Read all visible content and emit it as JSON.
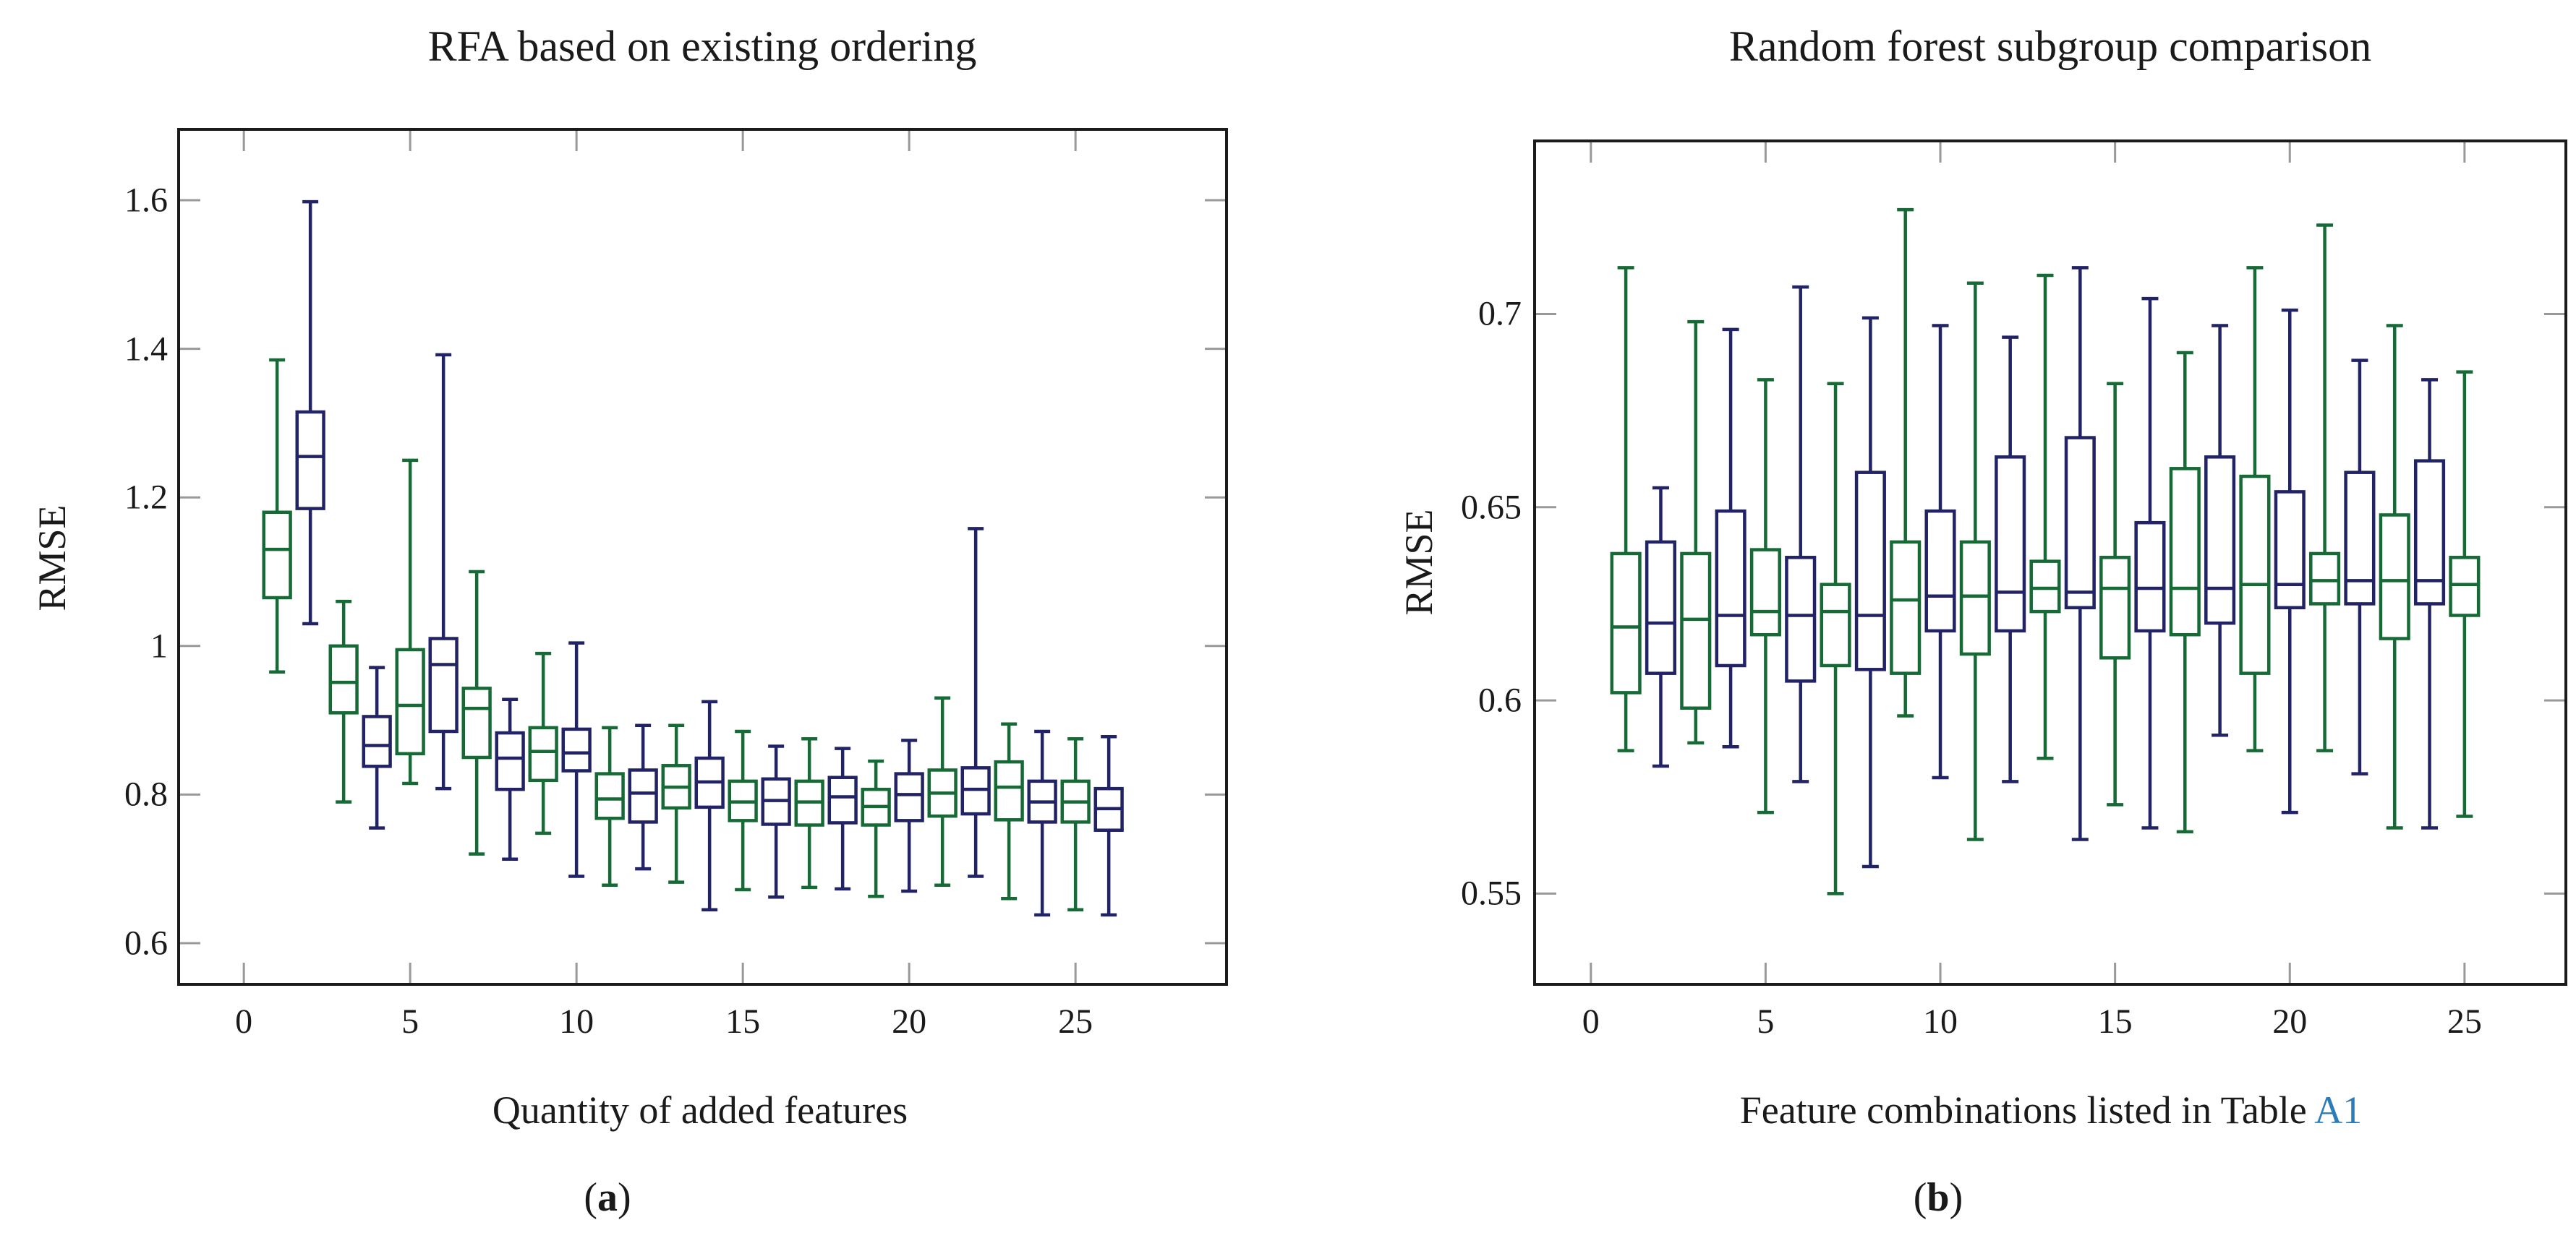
{
  "figure": {
    "type": "two-panel boxplot comparison",
    "background": "#ffffff"
  },
  "colors": {
    "green": "#156a35",
    "navy": "#222366",
    "axis": "#1b1b1b",
    "tick": "#999999",
    "link_blue": "#2b7cb9",
    "text": "#1a1a1a"
  },
  "chart_data": [
    {
      "panel": "a",
      "type": "boxplot",
      "title": "RFA based on existing ordering",
      "ylabel": "RMSE",
      "xlabel": "Quantity of added features",
      "xlabel_prefix": "Quantity of added features",
      "xlabel_link": "",
      "caption": "(a)",
      "caption_open": "(",
      "caption_letter": "a",
      "caption_close": ")",
      "xticks": [
        0,
        5,
        10,
        15,
        20,
        25
      ],
      "xtick_labels": [
        "0",
        "5",
        "10",
        "15",
        "20",
        "25"
      ],
      "yticks": [
        0.6,
        0.8,
        1,
        1.2,
        1.4,
        1.6
      ],
      "ytick_labels": [
        "0.6",
        "0.8",
        "1",
        "1.2",
        "1.4",
        "1.6"
      ],
      "xlim": [
        -1.96,
        29.54
      ],
      "ylim": [
        0.5445,
        1.6954
      ],
      "grid": false,
      "legend": "none",
      "series_note": "odd positions green, even positions navy",
      "boxes": [
        {
          "x": 1,
          "color": "green",
          "low": 0.965,
          "q1": 1.065,
          "median": 1.13,
          "q3": 1.18,
          "high": 1.385
        },
        {
          "x": 2,
          "color": "navy",
          "low": 1.03,
          "q1": 1.185,
          "median": 1.255,
          "q3": 1.315,
          "high": 1.598
        },
        {
          "x": 3,
          "color": "green",
          "low": 0.79,
          "q1": 0.91,
          "median": 0.951,
          "q3": 1.0,
          "high": 1.06
        },
        {
          "x": 4,
          "color": "navy",
          "low": 0.755,
          "q1": 0.838,
          "median": 0.866,
          "q3": 0.905,
          "high": 0.971
        },
        {
          "x": 5,
          "color": "green",
          "low": 0.815,
          "q1": 0.855,
          "median": 0.92,
          "q3": 0.995,
          "high": 1.25
        },
        {
          "x": 6,
          "color": "navy",
          "low": 0.808,
          "q1": 0.885,
          "median": 0.975,
          "q3": 1.01,
          "high": 1.392
        },
        {
          "x": 7,
          "color": "green",
          "low": 0.72,
          "q1": 0.85,
          "median": 0.916,
          "q3": 0.943,
          "high": 1.1
        },
        {
          "x": 8,
          "color": "navy",
          "low": 0.713,
          "q1": 0.807,
          "median": 0.849,
          "q3": 0.883,
          "high": 0.928
        },
        {
          "x": 9,
          "color": "green",
          "low": 0.748,
          "q1": 0.819,
          "median": 0.858,
          "q3": 0.89,
          "high": 0.99
        },
        {
          "x": 10,
          "color": "navy",
          "low": 0.69,
          "q1": 0.832,
          "median": 0.856,
          "q3": 0.888,
          "high": 1.004
        },
        {
          "x": 11,
          "color": "green",
          "low": 0.678,
          "q1": 0.768,
          "median": 0.794,
          "q3": 0.828,
          "high": 0.89
        },
        {
          "x": 12,
          "color": "navy",
          "low": 0.7,
          "q1": 0.763,
          "median": 0.802,
          "q3": 0.833,
          "high": 0.893
        },
        {
          "x": 13,
          "color": "green",
          "low": 0.682,
          "q1": 0.782,
          "median": 0.81,
          "q3": 0.839,
          "high": 0.893
        },
        {
          "x": 14,
          "color": "navy",
          "low": 0.645,
          "q1": 0.783,
          "median": 0.817,
          "q3": 0.849,
          "high": 0.925
        },
        {
          "x": 15,
          "color": "green",
          "low": 0.672,
          "q1": 0.765,
          "median": 0.79,
          "q3": 0.818,
          "high": 0.885
        },
        {
          "x": 16,
          "color": "navy",
          "low": 0.662,
          "q1": 0.76,
          "median": 0.792,
          "q3": 0.821,
          "high": 0.865
        },
        {
          "x": 17,
          "color": "green",
          "low": 0.675,
          "q1": 0.759,
          "median": 0.79,
          "q3": 0.818,
          "high": 0.875
        },
        {
          "x": 18,
          "color": "navy",
          "low": 0.673,
          "q1": 0.762,
          "median": 0.797,
          "q3": 0.823,
          "high": 0.862
        },
        {
          "x": 19,
          "color": "green",
          "low": 0.663,
          "q1": 0.759,
          "median": 0.784,
          "q3": 0.807,
          "high": 0.845
        },
        {
          "x": 20,
          "color": "navy",
          "low": 0.67,
          "q1": 0.765,
          "median": 0.8,
          "q3": 0.828,
          "high": 0.873
        },
        {
          "x": 21,
          "color": "green",
          "low": 0.678,
          "q1": 0.771,
          "median": 0.802,
          "q3": 0.833,
          "high": 0.93
        },
        {
          "x": 22,
          "color": "navy",
          "low": 0.69,
          "q1": 0.774,
          "median": 0.807,
          "q3": 0.836,
          "high": 1.158
        },
        {
          "x": 23,
          "color": "green",
          "low": 0.66,
          "q1": 0.766,
          "median": 0.81,
          "q3": 0.844,
          "high": 0.895
        },
        {
          "x": 24,
          "color": "navy",
          "low": 0.638,
          "q1": 0.763,
          "median": 0.79,
          "q3": 0.818,
          "high": 0.885
        },
        {
          "x": 25,
          "color": "green",
          "low": 0.645,
          "q1": 0.763,
          "median": 0.79,
          "q3": 0.818,
          "high": 0.875
        },
        {
          "x": 26,
          "color": "navy",
          "low": 0.638,
          "q1": 0.752,
          "median": 0.781,
          "q3": 0.808,
          "high": 0.878
        }
      ]
    },
    {
      "panel": "b",
      "type": "boxplot",
      "title": "Random forest subgroup comparison",
      "ylabel": "RMSE",
      "xlabel": "Feature combinations listed in Table A1",
      "xlabel_prefix": "Feature combinations listed in Table ",
      "xlabel_link": "A1",
      "caption": "(b)",
      "caption_open": "(",
      "caption_letter": "b",
      "caption_close": ")",
      "xticks": [
        0,
        5,
        10,
        15,
        20,
        25
      ],
      "xtick_labels": [
        "0",
        "5",
        "10",
        "15",
        "20",
        "25"
      ],
      "yticks": [
        0.55,
        0.6,
        0.65,
        0.7
      ],
      "ytick_labels": [
        "0.55",
        "0.6",
        "0.65",
        "0.7"
      ],
      "xlim": [
        -1.61,
        27.9
      ],
      "ylim": [
        0.5265,
        0.7448
      ],
      "grid": false,
      "legend": "none",
      "series_note": "odd positions green, even positions navy",
      "boxes": [
        {
          "x": 1,
          "color": "green",
          "low": 0.587,
          "q1": 0.602,
          "median": 0.619,
          "q3": 0.638,
          "high": 0.712
        },
        {
          "x": 2,
          "color": "navy",
          "low": 0.583,
          "q1": 0.607,
          "median": 0.62,
          "q3": 0.641,
          "high": 0.655
        },
        {
          "x": 3,
          "color": "green",
          "low": 0.589,
          "q1": 0.598,
          "median": 0.621,
          "q3": 0.638,
          "high": 0.698
        },
        {
          "x": 4,
          "color": "navy",
          "low": 0.588,
          "q1": 0.609,
          "median": 0.622,
          "q3": 0.649,
          "high": 0.696
        },
        {
          "x": 5,
          "color": "green",
          "low": 0.571,
          "q1": 0.617,
          "median": 0.623,
          "q3": 0.639,
          "high": 0.683
        },
        {
          "x": 6,
          "color": "navy",
          "low": 0.579,
          "q1": 0.605,
          "median": 0.622,
          "q3": 0.637,
          "high": 0.707
        },
        {
          "x": 7,
          "color": "green",
          "low": 0.55,
          "q1": 0.609,
          "median": 0.623,
          "q3": 0.63,
          "high": 0.682
        },
        {
          "x": 8,
          "color": "navy",
          "low": 0.557,
          "q1": 0.608,
          "median": 0.622,
          "q3": 0.659,
          "high": 0.699
        },
        {
          "x": 9,
          "color": "green",
          "low": 0.596,
          "q1": 0.607,
          "median": 0.626,
          "q3": 0.641,
          "high": 0.727
        },
        {
          "x": 10,
          "color": "navy",
          "low": 0.58,
          "q1": 0.618,
          "median": 0.627,
          "q3": 0.649,
          "high": 0.697
        },
        {
          "x": 11,
          "color": "green",
          "low": 0.564,
          "q1": 0.612,
          "median": 0.627,
          "q3": 0.641,
          "high": 0.708
        },
        {
          "x": 12,
          "color": "navy",
          "low": 0.579,
          "q1": 0.618,
          "median": 0.628,
          "q3": 0.663,
          "high": 0.694
        },
        {
          "x": 13,
          "color": "green",
          "low": 0.585,
          "q1": 0.623,
          "median": 0.629,
          "q3": 0.636,
          "high": 0.71
        },
        {
          "x": 14,
          "color": "navy",
          "low": 0.564,
          "q1": 0.624,
          "median": 0.628,
          "q3": 0.668,
          "high": 0.712
        },
        {
          "x": 15,
          "color": "green",
          "low": 0.573,
          "q1": 0.611,
          "median": 0.629,
          "q3": 0.637,
          "high": 0.682
        },
        {
          "x": 16,
          "color": "navy",
          "low": 0.567,
          "q1": 0.618,
          "median": 0.629,
          "q3": 0.646,
          "high": 0.704
        },
        {
          "x": 17,
          "color": "green",
          "low": 0.566,
          "q1": 0.617,
          "median": 0.629,
          "q3": 0.66,
          "high": 0.69
        },
        {
          "x": 18,
          "color": "navy",
          "low": 0.591,
          "q1": 0.62,
          "median": 0.629,
          "q3": 0.663,
          "high": 0.697
        },
        {
          "x": 19,
          "color": "green",
          "low": 0.587,
          "q1": 0.607,
          "median": 0.63,
          "q3": 0.658,
          "high": 0.712
        },
        {
          "x": 20,
          "color": "navy",
          "low": 0.571,
          "q1": 0.624,
          "median": 0.63,
          "q3": 0.654,
          "high": 0.701
        },
        {
          "x": 21,
          "color": "green",
          "low": 0.587,
          "q1": 0.625,
          "median": 0.631,
          "q3": 0.638,
          "high": 0.723
        },
        {
          "x": 22,
          "color": "navy",
          "low": 0.581,
          "q1": 0.625,
          "median": 0.631,
          "q3": 0.659,
          "high": 0.688
        },
        {
          "x": 23,
          "color": "green",
          "low": 0.567,
          "q1": 0.616,
          "median": 0.631,
          "q3": 0.648,
          "high": 0.697
        },
        {
          "x": 24,
          "color": "navy",
          "low": 0.567,
          "q1": 0.625,
          "median": 0.631,
          "q3": 0.662,
          "high": 0.683
        },
        {
          "x": 25,
          "color": "green",
          "low": 0.57,
          "q1": 0.622,
          "median": 0.63,
          "q3": 0.637,
          "high": 0.685
        }
      ]
    }
  ]
}
